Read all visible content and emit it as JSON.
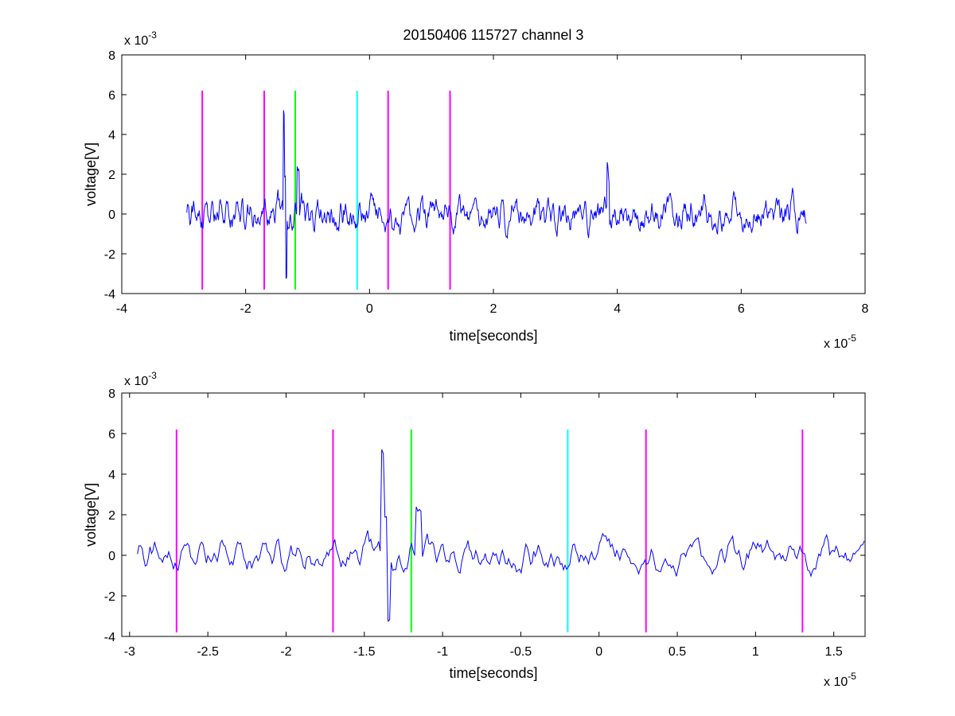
{
  "title": "20150406 115727 channel 3",
  "colors": {
    "signal": "#0000ff",
    "magenta": "#ff00ff",
    "green": "#00ff00",
    "cyan": "#00ffff",
    "axes": "#000000"
  },
  "chart_data": [
    {
      "type": "line",
      "title": "20150406 115727 channel 3",
      "xlabel": "time[seconds]",
      "ylabel": "voltage[V]",
      "x_exponent": "x 10",
      "x_exponent_power": "-5",
      "y_exponent": "x 10",
      "y_exponent_power": "-3",
      "xlim": [
        -4,
        8
      ],
      "ylim": [
        -4,
        8
      ],
      "xticks": [
        "-4",
        "-2",
        "0",
        "2",
        "4",
        "6",
        "8"
      ],
      "yticks": [
        "-4",
        "-2",
        "0",
        "2",
        "4",
        "6",
        "8"
      ],
      "signal_range": [
        -2.95,
        7.05
      ],
      "markers": [
        {
          "x": -2.7,
          "color": "magenta"
        },
        {
          "x": -1.7,
          "color": "magenta"
        },
        {
          "x": -1.2,
          "color": "green"
        },
        {
          "x": -0.2,
          "color": "cyan"
        },
        {
          "x": 0.3,
          "color": "magenta"
        },
        {
          "x": 1.3,
          "color": "magenta"
        }
      ],
      "marker_ylim": [
        -3.8,
        6.2
      ],
      "grid": false
    },
    {
      "type": "line",
      "xlabel": "time[seconds]",
      "ylabel": "voltage[V]",
      "x_exponent": "x 10",
      "x_exponent_power": "-5",
      "y_exponent": "x 10",
      "y_exponent_power": "-3",
      "xlim": [
        -3.05,
        1.7
      ],
      "ylim": [
        -4,
        8
      ],
      "xticks": [
        "-3",
        "-2.5",
        "-2",
        "-1.5",
        "-1",
        "-0.5",
        "0",
        "0.5",
        "1",
        "1.5"
      ],
      "yticks": [
        "-4",
        "-2",
        "0",
        "2",
        "4",
        "6",
        "8"
      ],
      "signal_range": [
        -2.95,
        1.7
      ],
      "markers": [
        {
          "x": -2.7,
          "color": "magenta"
        },
        {
          "x": -1.7,
          "color": "magenta"
        },
        {
          "x": -1.2,
          "color": "green"
        },
        {
          "x": -0.2,
          "color": "cyan"
        },
        {
          "x": 0.3,
          "color": "magenta"
        },
        {
          "x": 1.3,
          "color": "magenta"
        }
      ],
      "marker_ylim": [
        -3.8,
        6.2
      ],
      "grid": false
    }
  ]
}
